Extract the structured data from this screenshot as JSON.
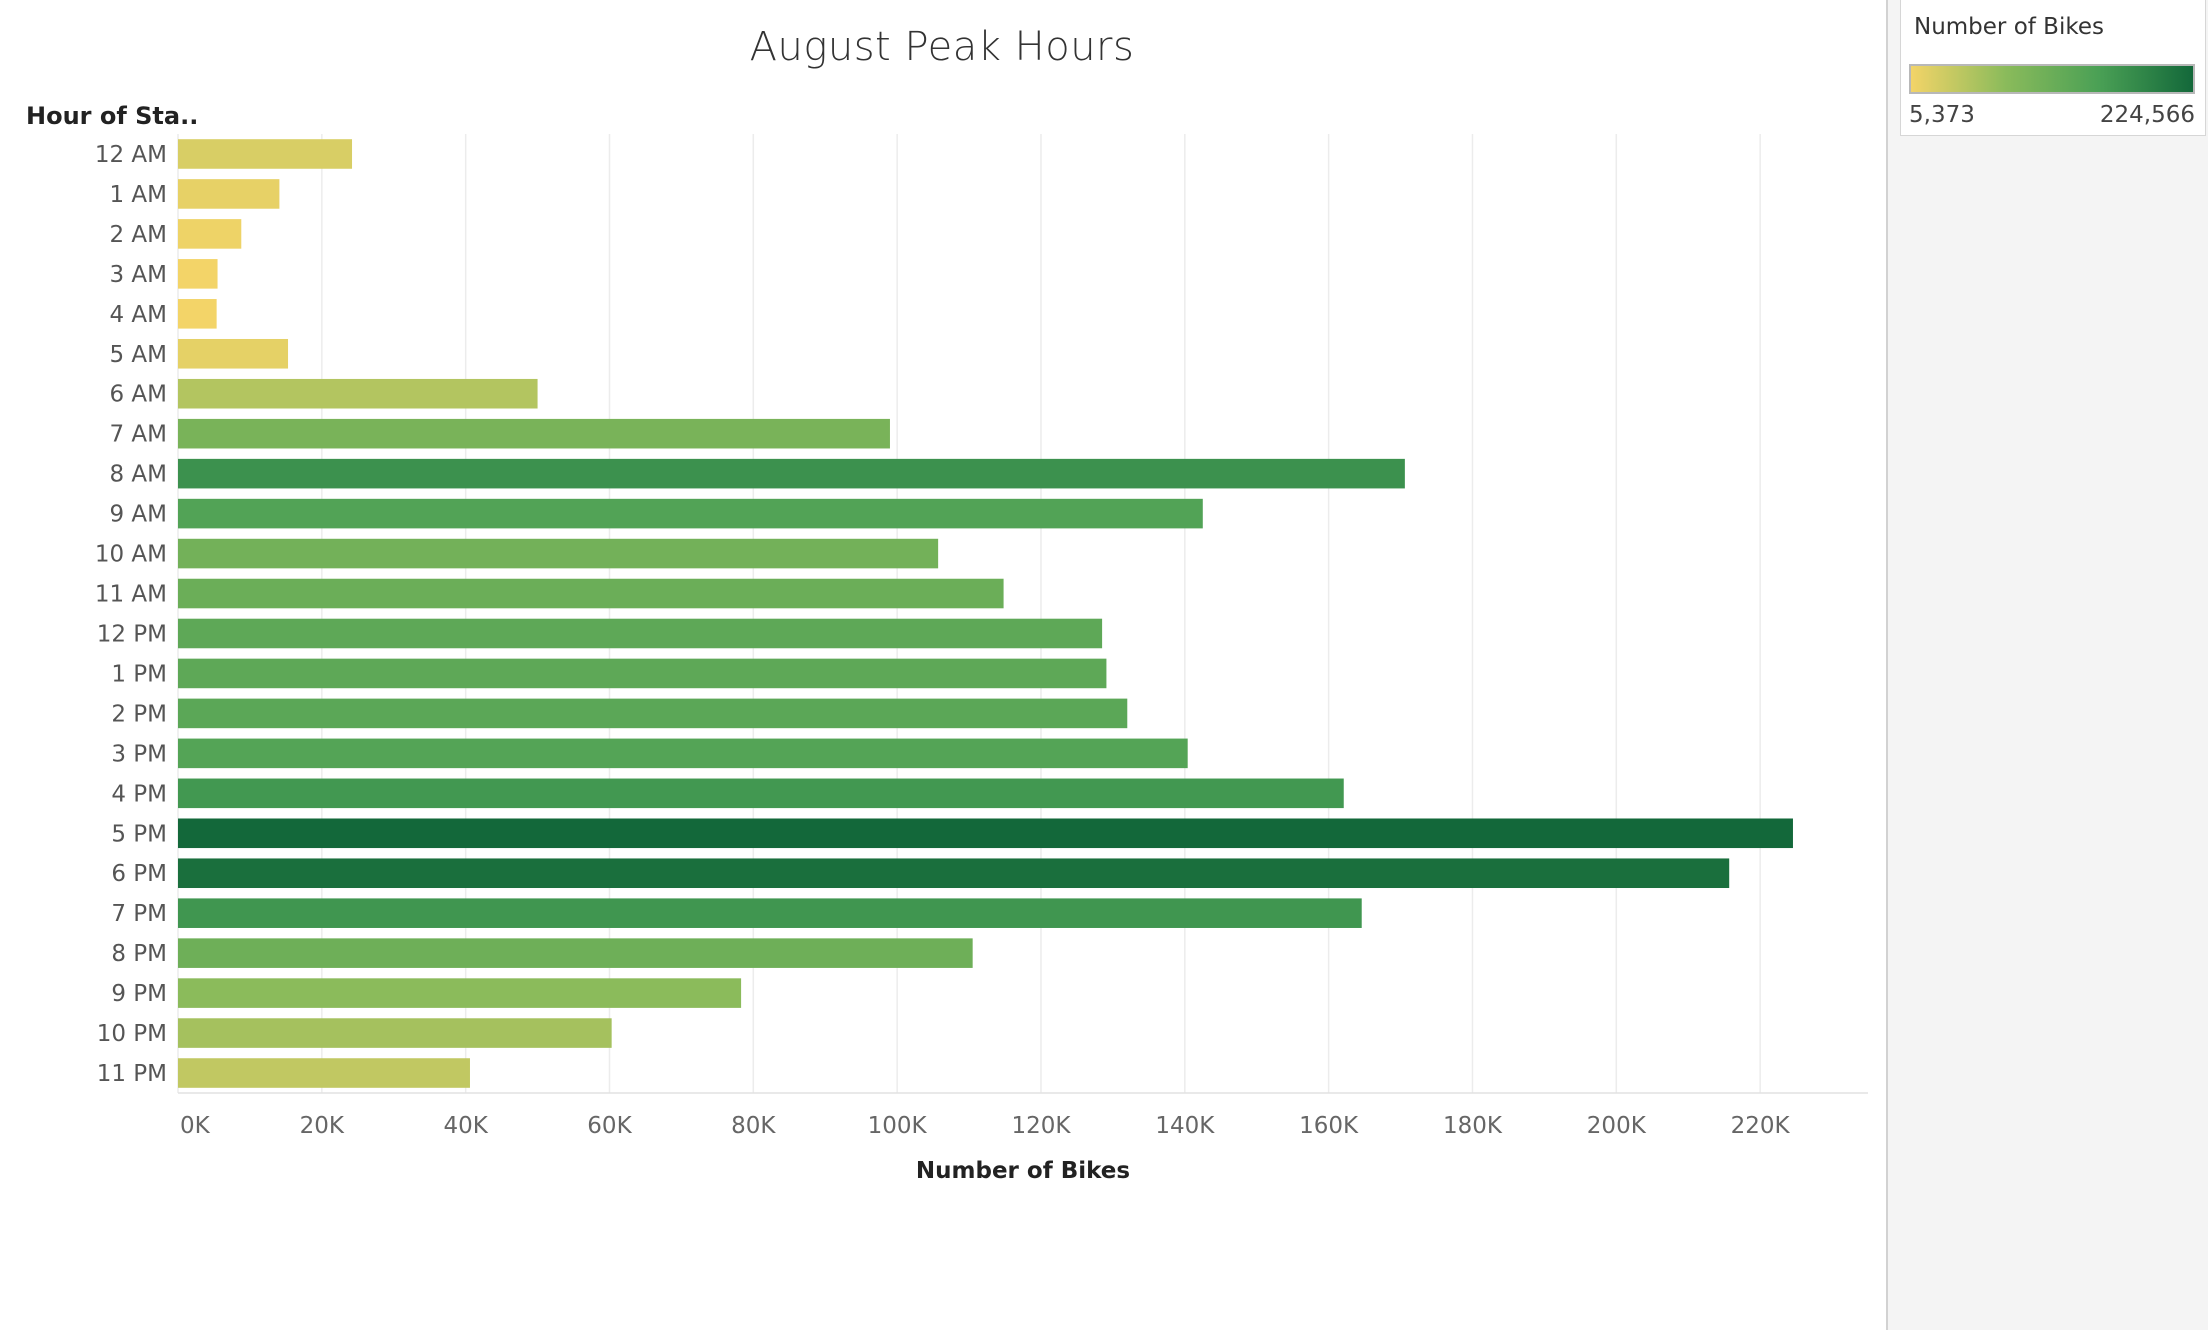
{
  "chart_data": {
    "type": "bar",
    "orientation": "horizontal",
    "title": "August Peak Hours",
    "xlabel": "Number of Bikes",
    "ylabel": "Hour of Sta..",
    "categories": [
      "12 AM",
      "1 AM",
      "2 AM",
      "3 AM",
      "4 AM",
      "5 AM",
      "6 AM",
      "7 AM",
      "8 AM",
      "9 AM",
      "10 AM",
      "11 AM",
      "12 PM",
      "1 PM",
      "2 PM",
      "3 PM",
      "4 PM",
      "5 PM",
      "6 PM",
      "7 PM",
      "8 PM",
      "9 PM",
      "10 PM",
      "11 PM"
    ],
    "values": [
      24200,
      14100,
      8800,
      5500,
      5373,
      15300,
      50000,
      99000,
      170600,
      142500,
      105700,
      114800,
      128500,
      129100,
      132000,
      140400,
      162100,
      224566,
      215700,
      164600,
      110500,
      78300,
      60300,
      40600
    ],
    "xlim": [
      0,
      235000
    ],
    "xticks": [
      0,
      20000,
      40000,
      60000,
      80000,
      100000,
      120000,
      140000,
      160000,
      180000,
      200000,
      220000
    ],
    "xtick_labels": [
      "0K",
      "20K",
      "40K",
      "60K",
      "80K",
      "100K",
      "120K",
      "140K",
      "160K",
      "180K",
      "200K",
      "220K"
    ],
    "grid": "vertical",
    "legend": {
      "title": "Number of Bikes",
      "min_label": "5,373",
      "max_label": "224,566",
      "min": 5373,
      "max": 224566,
      "placement": "top-right",
      "color_stops": [
        "#f3d468",
        "#8bbb5b",
        "#4aa055",
        "#13683a"
      ]
    }
  }
}
